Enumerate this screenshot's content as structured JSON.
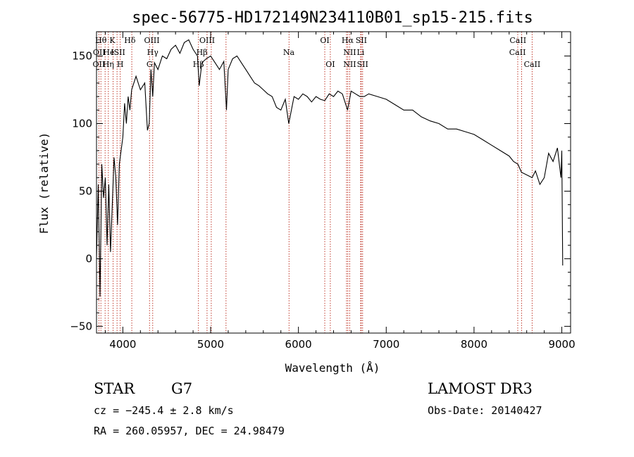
{
  "chart_data": {
    "type": "line",
    "title": "spec-56775-HD172149N234110B01_sp15-215.fits",
    "xlabel": "Wavelength (Å)",
    "ylabel": "Flux (relative)",
    "xlim": [
      3700,
      9100
    ],
    "ylim": [
      -55,
      168
    ],
    "xticks": [
      4000,
      5000,
      6000,
      7000,
      8000,
      9000
    ],
    "yticks": [
      -50,
      0,
      50,
      100,
      150
    ],
    "grid": false,
    "series": [
      {
        "x": [
          3700,
          3720,
          3740,
          3760,
          3780,
          3800,
          3820,
          3840,
          3860,
          3880,
          3900,
          3920,
          3940,
          3960,
          3980,
          4000,
          4020,
          4040,
          4060,
          4080,
          4100,
          4150,
          4200,
          4250,
          4280,
          4300,
          4320,
          4340,
          4360,
          4400,
          4450,
          4500,
          4550,
          4600,
          4650,
          4700,
          4750,
          4800,
          4850,
          4870,
          4900,
          4950,
          5000,
          5050,
          5100,
          5150,
          5180,
          5200,
          5250,
          5300,
          5350,
          5400,
          5450,
          5500,
          5550,
          5600,
          5650,
          5700,
          5750,
          5800,
          5850,
          5890,
          5950,
          6000,
          6050,
          6100,
          6150,
          6200,
          6250,
          6300,
          6350,
          6400,
          6450,
          6500,
          6560,
          6600,
          6650,
          6700,
          6750,
          6800,
          6900,
          7000,
          7100,
          7200,
          7300,
          7400,
          7500,
          7600,
          7700,
          7800,
          7900,
          8000,
          8100,
          8200,
          8300,
          8400,
          8450,
          8500,
          8540,
          8600,
          8662,
          8700,
          8750,
          8800,
          8850,
          8900,
          8950,
          8990,
          9000,
          9010
        ],
        "y": [
          0,
          55,
          -28,
          70,
          45,
          60,
          10,
          55,
          5,
          40,
          75,
          60,
          25,
          70,
          80,
          90,
          115,
          100,
          120,
          110,
          125,
          135,
          125,
          130,
          95,
          100,
          140,
          120,
          145,
          140,
          150,
          148,
          155,
          158,
          152,
          160,
          162,
          155,
          150,
          128,
          145,
          148,
          150,
          145,
          140,
          146,
          110,
          140,
          148,
          150,
          145,
          140,
          135,
          130,
          128,
          125,
          122,
          120,
          112,
          110,
          118,
          100,
          120,
          118,
          122,
          120,
          116,
          120,
          118,
          117,
          122,
          120,
          124,
          122,
          110,
          124,
          122,
          120,
          120,
          122,
          120,
          118,
          114,
          110,
          110,
          105,
          102,
          100,
          96,
          96,
          94,
          92,
          88,
          84,
          80,
          76,
          72,
          70,
          64,
          62,
          60,
          65,
          55,
          60,
          78,
          72,
          82,
          60,
          80,
          -5
        ]
      }
    ],
    "line_markers": [
      {
        "x": 3750,
        "label": "Hθ",
        "row": 1
      },
      {
        "x": 3880,
        "label": "K",
        "row": 1
      },
      {
        "x": 4080,
        "label": "Hδ",
        "row": 1
      },
      {
        "x": 4330,
        "label": "OIII",
        "row": 1
      },
      {
        "x": 4960,
        "label": "OIII",
        "row": 1
      },
      {
        "x": 6300,
        "label": "OI",
        "row": 1
      },
      {
        "x": 6560,
        "label": "Hα",
        "row": 1
      },
      {
        "x": 6716,
        "label": "SII",
        "row": 1
      },
      {
        "x": 8500,
        "label": "CaII",
        "row": 1
      },
      {
        "x": 3730,
        "label": "OII",
        "row": 2
      },
      {
        "x": 3840,
        "label": "He",
        "row": 2
      },
      {
        "x": 3945,
        "label": "ISII",
        "row": 2
      },
      {
        "x": 4340,
        "label": "Hγ",
        "row": 2
      },
      {
        "x": 4900,
        "label": "Hβ",
        "row": 2
      },
      {
        "x": 5890,
        "label": "Na",
        "row": 2
      },
      {
        "x": 6584,
        "label": "NII",
        "row": 2
      },
      {
        "x": 6708,
        "label": "Li",
        "row": 2
      },
      {
        "x": 8495,
        "label": "CaII",
        "row": 2
      },
      {
        "x": 3727,
        "label": "OII",
        "row": 3
      },
      {
        "x": 3835,
        "label": "Hη",
        "row": 3
      },
      {
        "x": 3970,
        "label": "H",
        "row": 3
      },
      {
        "x": 4304,
        "label": "G",
        "row": 3
      },
      {
        "x": 4861,
        "label": "Hβ",
        "row": 3
      },
      {
        "x": 6363,
        "label": "OI",
        "row": 3
      },
      {
        "x": 6584,
        "label": "NII",
        "row": 3
      },
      {
        "x": 6731,
        "label": "SII",
        "row": 3
      },
      {
        "x": 8662,
        "label": "CaII",
        "row": 3
      }
    ],
    "line_positions": [
      3727,
      3750,
      3798,
      3835,
      3889,
      3934,
      3970,
      4102,
      4304,
      4340,
      4861,
      4959,
      5007,
      5175,
      5893,
      6300,
      6363,
      6548,
      6563,
      6584,
      6708,
      6716,
      6731,
      8498,
      8542,
      8662
    ]
  },
  "footer": {
    "object": "STAR",
    "subclass": "G7",
    "survey": "LAMOST DR3",
    "cz": "cz = −245.4 ± 2.8 km/s",
    "obs_date": "Obs-Date: 20140427",
    "coords": "RA = 260.05957, DEC =  24.98479"
  }
}
